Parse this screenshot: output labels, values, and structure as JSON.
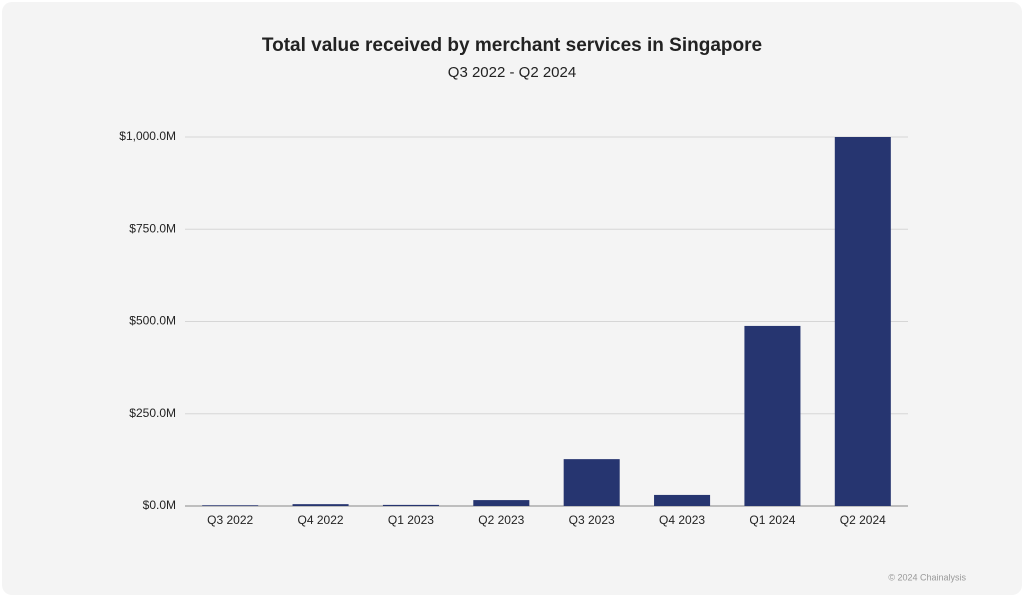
{
  "chart_data": {
    "type": "bar",
    "title": "Total value received by merchant services in Singapore",
    "subtitle": "Q3 2022 - Q2 2024",
    "categories": [
      "Q3 2022",
      "Q4 2022",
      "Q1 2023",
      "Q2 2023",
      "Q3 2023",
      "Q4 2023",
      "Q1 2024",
      "Q2 2024"
    ],
    "values": [
      2,
      5,
      3,
      16,
      127,
      30,
      488,
      1000
    ],
    "color": "#263570",
    "ylim": [
      0,
      1000
    ],
    "yticks": [
      {
        "value": 0,
        "label": "$0.0M"
      },
      {
        "value": 250,
        "label": "$250.0M"
      },
      {
        "value": 500,
        "label": "$500.0M"
      },
      {
        "value": 750,
        "label": "$750.0M"
      },
      {
        "value": 1000,
        "label": "$1,000.0M"
      }
    ],
    "grid": true,
    "source": "© 2024 Chainalysis"
  }
}
